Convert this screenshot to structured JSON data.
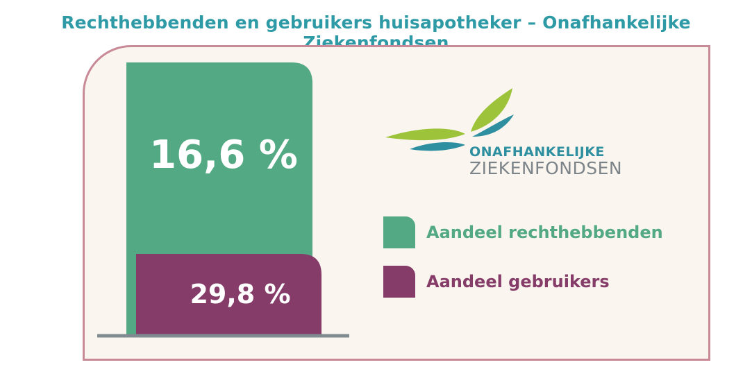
{
  "header": {
    "title": "Rechthebbenden en gebruikers huisapotheker – Onafhankelijke Ziekenfondsen"
  },
  "logo": {
    "line1": "ONAFHANKELIJKE",
    "line2": "ZIEKENFONDSEN"
  },
  "colors": {
    "rechthebbenden": "#53a984",
    "gebruikers": "#853c69",
    "title": "#2e9aa5",
    "baseline": "#7f8a91",
    "panel_border": "#c98a98",
    "panel_bg": "#faf6ef"
  },
  "chart_data": {
    "type": "bar",
    "title": "Rechthebbenden en gebruikers huisapotheker – Onafhankelijke Ziekenfondsen",
    "series": [
      {
        "name": "Aandeel rechthebbenden",
        "value": 16.6,
        "label": "16,6 %",
        "color": "#53a984"
      },
      {
        "name": "Aandeel gebruikers",
        "value": 29.8,
        "label": "29,8 %",
        "color": "#853c69"
      }
    ],
    "legend": "right"
  }
}
